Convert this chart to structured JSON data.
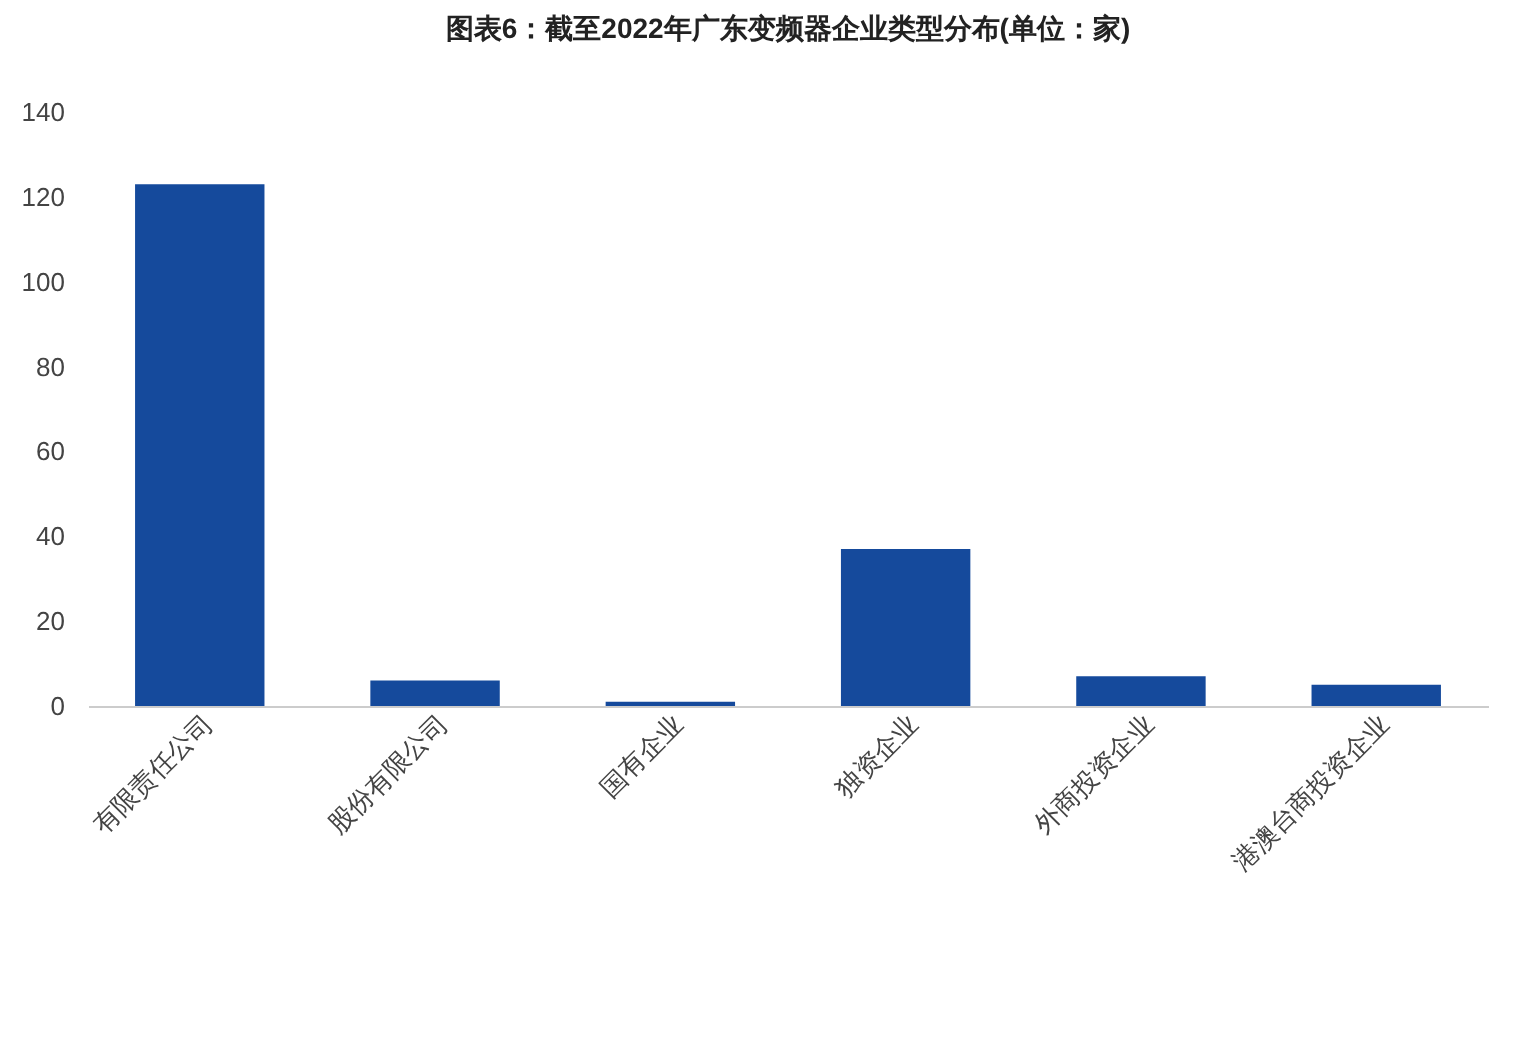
{
  "chart_data": {
    "type": "bar",
    "title": "图表6：截至2022年广东变频器企业类型分布(单位：家)",
    "categories": [
      "有限责任公司",
      "股份有限公司",
      "国有企业",
      "独资企业",
      "外商投资企业",
      "港澳台商投资企业"
    ],
    "values": [
      123,
      6,
      1,
      37,
      7,
      5
    ],
    "color": "#154a9c",
    "ylim": [
      0,
      140
    ],
    "yticks": [
      0,
      20,
      40,
      60,
      80,
      100,
      120,
      140
    ],
    "grid": false
  }
}
